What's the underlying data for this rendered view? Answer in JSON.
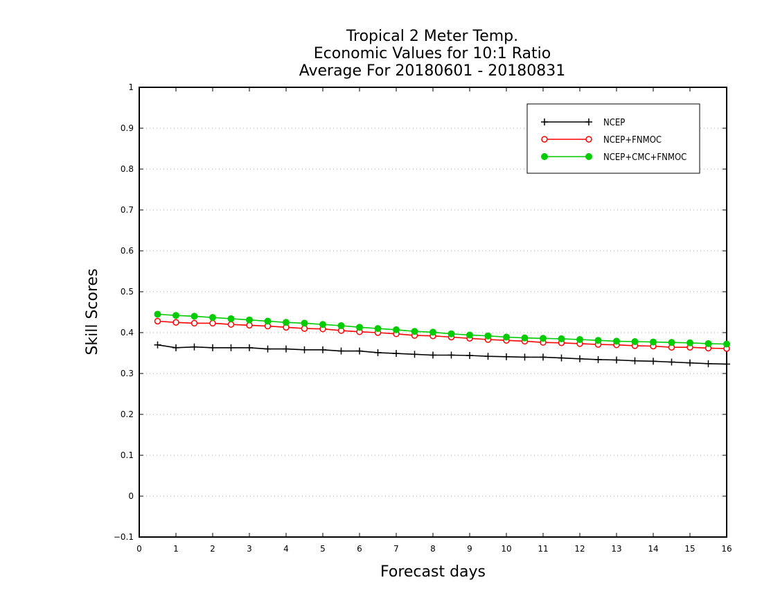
{
  "chart_data": {
    "type": "line",
    "title": [
      "Tropical 2 Meter Temp.",
      "Economic Values for 10:1 Ratio",
      "Average For 20180601 - 20180831"
    ],
    "xlabel": "Forecast days",
    "ylabel": "Skill Scores",
    "xlim": [
      0,
      16
    ],
    "ylim": [
      -0.1,
      1
    ],
    "xticks": [
      "0",
      "1",
      "2",
      "3",
      "4",
      "5",
      "6",
      "7",
      "8",
      "9",
      "10",
      "11",
      "12",
      "13",
      "14",
      "15",
      "16"
    ],
    "yticks": [
      "−0.1",
      "0",
      "0.1",
      "0.2",
      "0.3",
      "0.4",
      "0.5",
      "0.6",
      "0.7",
      "0.8",
      "0.9",
      "1"
    ],
    "grid": true,
    "legend_position": "top-right",
    "x": [
      0.5,
      1,
      1.5,
      2,
      2.5,
      3,
      3.5,
      4,
      4.5,
      5,
      5.5,
      6,
      6.5,
      7,
      7.5,
      8,
      8.5,
      9,
      9.5,
      10,
      10.5,
      11,
      11.5,
      12,
      12.5,
      13,
      13.5,
      14,
      14.5,
      15,
      15.5,
      16
    ],
    "series": [
      {
        "name": "NCEP",
        "color": "#000000",
        "marker": "plus",
        "values": [
          0.37,
          0.363,
          0.365,
          0.363,
          0.363,
          0.363,
          0.36,
          0.36,
          0.358,
          0.358,
          0.355,
          0.355,
          0.351,
          0.349,
          0.347,
          0.345,
          0.345,
          0.344,
          0.342,
          0.341,
          0.34,
          0.34,
          0.338,
          0.336,
          0.334,
          0.333,
          0.331,
          0.33,
          0.328,
          0.326,
          0.324,
          0.323
        ]
      },
      {
        "name": "NCEP+FNMOC",
        "color": "#ff0000",
        "marker": "open-circle",
        "values": [
          0.428,
          0.425,
          0.423,
          0.423,
          0.42,
          0.418,
          0.416,
          0.413,
          0.41,
          0.409,
          0.405,
          0.402,
          0.4,
          0.397,
          0.393,
          0.392,
          0.389,
          0.386,
          0.383,
          0.381,
          0.379,
          0.376,
          0.375,
          0.373,
          0.371,
          0.37,
          0.368,
          0.367,
          0.364,
          0.364,
          0.362,
          0.361
        ]
      },
      {
        "name": "NCEP+CMC+FNMOC",
        "color": "#00cc00",
        "marker": "filled-circle",
        "values": [
          0.445,
          0.442,
          0.44,
          0.437,
          0.434,
          0.431,
          0.428,
          0.425,
          0.423,
          0.42,
          0.417,
          0.413,
          0.41,
          0.407,
          0.403,
          0.401,
          0.397,
          0.394,
          0.392,
          0.389,
          0.387,
          0.386,
          0.385,
          0.383,
          0.381,
          0.379,
          0.378,
          0.377,
          0.376,
          0.375,
          0.373,
          0.372
        ]
      }
    ]
  }
}
